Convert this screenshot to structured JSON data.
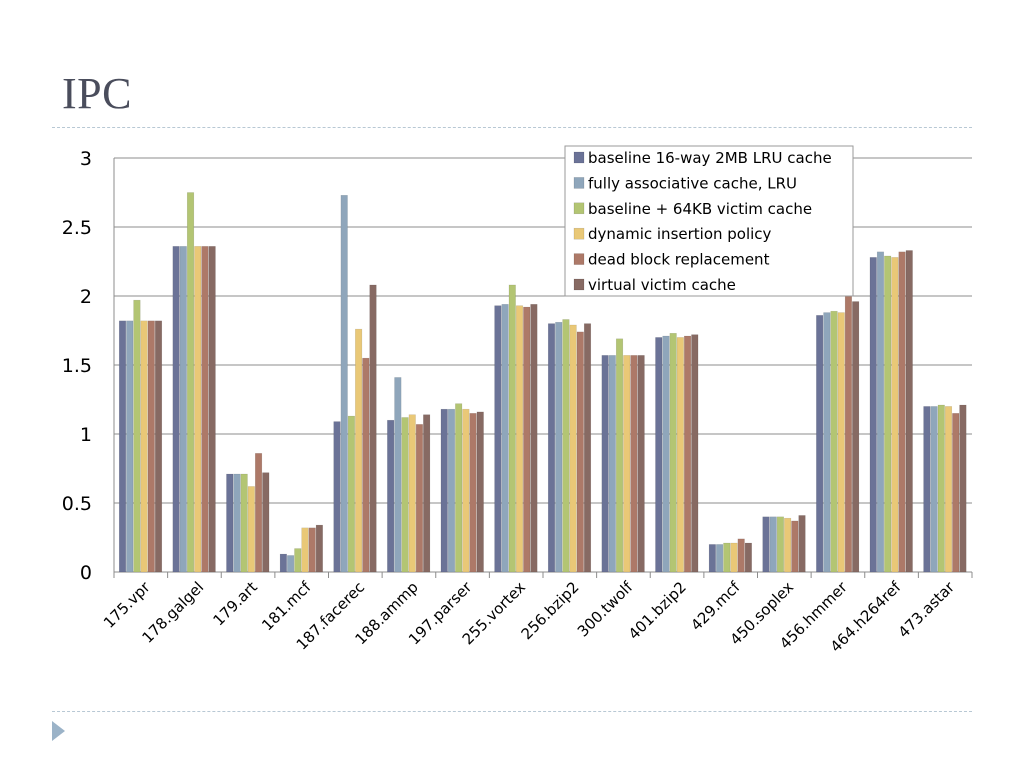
{
  "slide": {
    "title": "IPC"
  },
  "chart_data": {
    "type": "bar",
    "title": "",
    "xlabel": "",
    "ylabel": "",
    "ylim": [
      0,
      3
    ],
    "yticks": [
      "0",
      "0.5",
      "1",
      "1.5",
      "2",
      "2.5",
      "3"
    ],
    "ytick_values": [
      0,
      0.5,
      1,
      1.5,
      2,
      2.5,
      3
    ],
    "grid": true,
    "legend_position": "top-right",
    "categories": [
      "175.vpr",
      "178.galgel",
      "179.art",
      "181.mcf",
      "187.facerec",
      "188.ammp",
      "197.parser",
      "255.vortex",
      "256.bzip2",
      "300.twolf",
      "401.bzip2",
      "429.mcf",
      "450.soplex",
      "456.hmmer",
      "464.h264ref",
      "473.astar"
    ],
    "series": [
      {
        "name": "baseline 16-way 2MB LRU cache",
        "color": "#6b7397",
        "values": [
          1.82,
          2.36,
          0.71,
          0.13,
          1.09,
          1.1,
          1.18,
          1.93,
          1.8,
          1.57,
          1.7,
          0.2,
          0.4,
          1.86,
          2.28,
          1.2
        ]
      },
      {
        "name": "fully associative cache, LRU",
        "color": "#8fa6bb",
        "values": [
          1.82,
          2.36,
          0.71,
          0.12,
          2.73,
          1.41,
          1.18,
          1.94,
          1.81,
          1.57,
          1.71,
          0.2,
          0.4,
          1.88,
          2.32,
          1.2
        ]
      },
      {
        "name": "baseline + 64KB victim cache",
        "color": "#b3c573",
        "values": [
          1.97,
          2.75,
          0.71,
          0.17,
          1.13,
          1.12,
          1.22,
          2.08,
          1.83,
          1.69,
          1.73,
          0.21,
          0.4,
          1.89,
          2.29,
          1.21
        ]
      },
      {
        "name": "dynamic insertion policy",
        "color": "#e9c877",
        "values": [
          1.82,
          2.36,
          0.62,
          0.32,
          1.76,
          1.14,
          1.18,
          1.93,
          1.79,
          1.57,
          1.7,
          0.21,
          0.39,
          1.88,
          2.28,
          1.2
        ]
      },
      {
        "name": "dead block replacement",
        "color": "#ad7968",
        "values": [
          1.82,
          2.36,
          0.86,
          0.32,
          1.55,
          1.07,
          1.15,
          1.92,
          1.74,
          1.57,
          1.71,
          0.24,
          0.37,
          2.0,
          2.32,
          1.15
        ]
      },
      {
        "name": "virtual victim cache",
        "color": "#876a63",
        "values": [
          1.82,
          2.36,
          0.72,
          0.34,
          2.08,
          1.14,
          1.16,
          1.94,
          1.8,
          1.57,
          1.72,
          0.21,
          0.41,
          1.96,
          2.33,
          1.21
        ]
      }
    ]
  }
}
